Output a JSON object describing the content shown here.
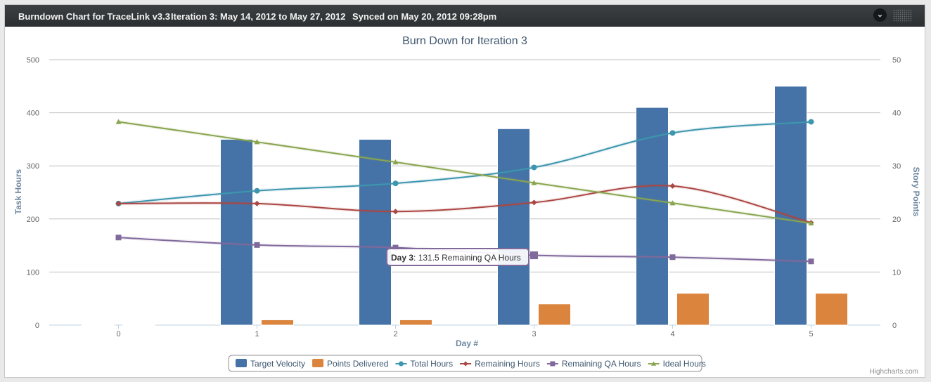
{
  "header": {
    "app_title": "Burndown Chart for TraceLink v3.3",
    "iteration_label": "Iteration 3:",
    "iteration_dates": "May 14, 2012 to May 27, 2012",
    "synced": "Synced on May 20, 2012 09:28pm",
    "menu_icon": "chevron-down-icon",
    "grip_icon": "grip-icon"
  },
  "chart_data": {
    "type": "bar",
    "title": "Burn Down for Iteration 3",
    "xlabel": "Day #",
    "ylabel": "Task Hours",
    "y2label": "Story Points",
    "categories": [
      "0",
      "1",
      "2",
      "3",
      "4",
      "5"
    ],
    "ylim": [
      0,
      500
    ],
    "y2lim": [
      0,
      50
    ],
    "yticks": [
      "0",
      "100",
      "200",
      "300",
      "400",
      "500"
    ],
    "y2ticks": [
      "0",
      "10",
      "20",
      "30",
      "40",
      "50"
    ],
    "grid": true,
    "legend_position": "bottom-center",
    "series": [
      {
        "name": "Target Velocity",
        "kind": "bar",
        "axis": "right",
        "color": "#4572a7",
        "values": [
          0,
          35,
          35,
          37,
          41,
          45
        ]
      },
      {
        "name": "Points Delivered",
        "kind": "bar",
        "axis": "right",
        "color": "#db843d",
        "values": [
          0,
          1,
          1,
          4,
          6,
          6
        ]
      },
      {
        "name": "Total Hours",
        "kind": "line",
        "axis": "left",
        "color": "#3d96ae",
        "marker": "circle",
        "values": [
          229,
          253,
          267,
          297,
          362,
          383
        ]
      },
      {
        "name": "Remaining Hours",
        "kind": "line",
        "axis": "left",
        "color": "#aa4643",
        "marker": "diamond",
        "values": [
          229,
          229,
          214,
          231,
          262,
          193
        ]
      },
      {
        "name": "Remaining QA Hours",
        "kind": "line",
        "axis": "left",
        "color": "#80699b",
        "marker": "square",
        "values": [
          165,
          151,
          146,
          131.5,
          128,
          120
        ]
      },
      {
        "name": "Ideal Hours",
        "kind": "line",
        "axis": "left",
        "color": "#89a54e",
        "marker": "triangle",
        "values": [
          383,
          345,
          307,
          268,
          230,
          192
        ]
      }
    ],
    "tooltip": {
      "label": "Day 3",
      "text": ": 131.5 Remaining QA Hours",
      "series": "Remaining QA Hours",
      "category": "3",
      "value": 131.5
    },
    "credits": "Highcharts.com"
  }
}
